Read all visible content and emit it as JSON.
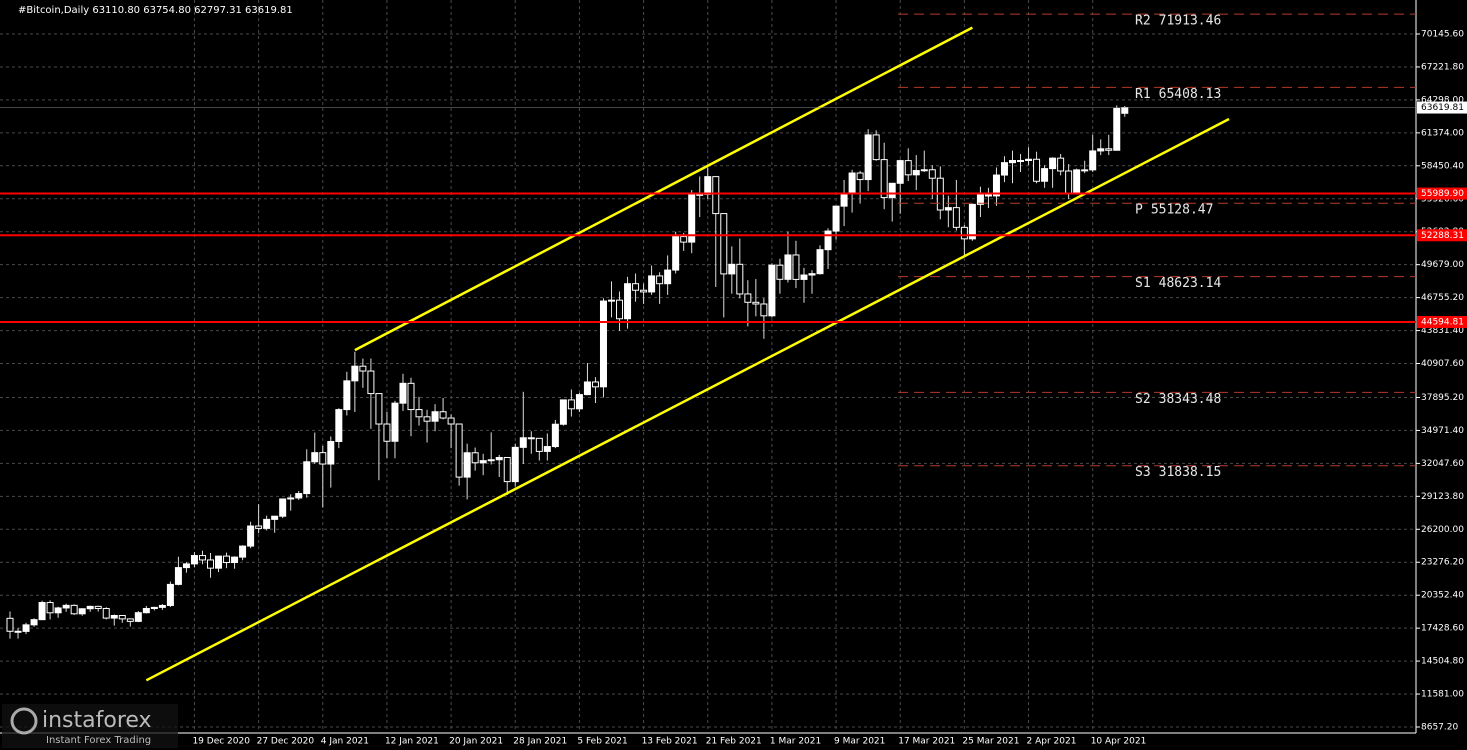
{
  "chart_data": {
    "type": "candlestick",
    "title": "#Bitcoin,Daily  63110.80 63754.80 62797.31 63619.81",
    "categories": [
      null,
      null,
      null,
      null,
      null,
      null,
      null,
      null,
      null,
      null,
      null,
      null,
      null,
      null,
      null,
      null,
      null,
      null,
      null,
      null,
      null,
      null,
      null,
      "19 Dec 2020",
      null,
      null,
      null,
      null,
      null,
      null,
      null,
      "27 Dec 2020",
      null,
      null,
      null,
      null,
      null,
      null,
      null,
      "4 Jan 2021",
      null,
      null,
      null,
      null,
      null,
      null,
      null,
      "12 Jan 2021",
      null,
      null,
      null,
      null,
      null,
      null,
      null,
      "20 Jan 2021",
      null,
      null,
      null,
      null,
      null,
      null,
      null,
      "28 Jan 2021",
      null,
      null,
      null,
      null,
      null,
      null,
      null,
      "5 Feb 2021",
      null,
      null,
      null,
      null,
      null,
      null,
      null,
      "13 Feb 2021",
      null,
      null,
      null,
      null,
      null,
      null,
      null,
      "21 Feb 2021",
      null,
      null,
      null,
      null,
      null,
      null,
      null,
      "1 Mar 2021",
      null,
      null,
      null,
      null,
      null,
      null,
      null,
      "9 Mar 2021",
      null,
      null,
      null,
      null,
      null,
      null,
      null,
      "17 Mar 2021",
      null,
      null,
      null,
      null,
      null,
      null,
      null,
      "25 Mar 2021",
      null,
      null,
      null,
      null,
      null,
      null,
      null,
      "2 Apr 2021",
      null,
      null,
      null,
      null,
      null,
      null,
      null,
      "10 Apr 2021",
      null,
      null,
      null,
      null
    ],
    "ohlc": [
      [
        18300,
        18900,
        16500,
        17150
      ],
      [
        17150,
        17450,
        16500,
        17140
      ],
      [
        17140,
        17900,
        16900,
        17720
      ],
      [
        17720,
        18300,
        17550,
        18180
      ],
      [
        18180,
        19860,
        18150,
        19700
      ],
      [
        19700,
        19900,
        18200,
        18790
      ],
      [
        18790,
        19330,
        18350,
        19220
      ],
      [
        19220,
        19600,
        18880,
        19450
      ],
      [
        19450,
        19540,
        18600,
        18700
      ],
      [
        18700,
        19180,
        18530,
        19150
      ],
      [
        19150,
        19420,
        18880,
        19360
      ],
      [
        19360,
        19420,
        18900,
        19170
      ],
      [
        19170,
        19280,
        18200,
        18320
      ],
      [
        18320,
        18640,
        17650,
        18550
      ],
      [
        18550,
        18560,
        17900,
        18250
      ],
      [
        18250,
        18290,
        17570,
        18030
      ],
      [
        18030,
        18950,
        17960,
        18800
      ],
      [
        18800,
        19400,
        18730,
        19170
      ],
      [
        19170,
        19330,
        19000,
        19270
      ],
      [
        19270,
        19570,
        19050,
        19440
      ],
      [
        19440,
        21560,
        19300,
        21310
      ],
      [
        21310,
        23770,
        21230,
        22800
      ],
      [
        22800,
        23280,
        22350,
        23130
      ],
      [
        23130,
        24170,
        22820,
        23870
      ],
      [
        23870,
        24300,
        23100,
        23480
      ],
      [
        23480,
        24100,
        21900,
        22750
      ],
      [
        22750,
        23840,
        22400,
        23820
      ],
      [
        23820,
        24130,
        22750,
        23250
      ],
      [
        23250,
        23800,
        22700,
        23730
      ],
      [
        23730,
        24780,
        23450,
        24710
      ],
      [
        24710,
        26870,
        24520,
        26490
      ],
      [
        26490,
        28420,
        25850,
        26280
      ],
      [
        26280,
        27410,
        26100,
        27080
      ],
      [
        27080,
        27370,
        25900,
        27360
      ],
      [
        27360,
        28940,
        27200,
        28890
      ],
      [
        28890,
        29300,
        27850,
        28980
      ],
      [
        28980,
        29600,
        28800,
        29370
      ],
      [
        29370,
        33300,
        29000,
        32190
      ],
      [
        32190,
        34780,
        32000,
        33000
      ],
      [
        33000,
        33600,
        28130,
        31990
      ],
      [
        31990,
        34440,
        29900,
        33990
      ],
      [
        33990,
        36940,
        33400,
        36820
      ],
      [
        36820,
        40180,
        36300,
        39370
      ],
      [
        39370,
        41950,
        36600,
        40670
      ],
      [
        40670,
        41350,
        38750,
        40240
      ],
      [
        40240,
        41350,
        35110,
        38240
      ],
      [
        38240,
        38250,
        30550,
        35540
      ],
      [
        35540,
        36630,
        32530,
        34010
      ],
      [
        34010,
        37600,
        32500,
        37390
      ],
      [
        37390,
        40000,
        36700,
        39150
      ],
      [
        39150,
        39650,
        34450,
        36820
      ],
      [
        36820,
        37950,
        35400,
        36180
      ],
      [
        36180,
        36800,
        33900,
        35790
      ],
      [
        35790,
        37300,
        34900,
        36630
      ],
      [
        36630,
        37850,
        35950,
        36070
      ],
      [
        36070,
        36400,
        33400,
        35540
      ],
      [
        35540,
        35550,
        30070,
        30830
      ],
      [
        30830,
        33800,
        28850,
        32990
      ],
      [
        32990,
        33450,
        31400,
        32100
      ],
      [
        32100,
        32900,
        31000,
        32290
      ],
      [
        32290,
        34800,
        31950,
        32370
      ],
      [
        32370,
        32800,
        30840,
        32570
      ],
      [
        32570,
        32570,
        29240,
        30430
      ],
      [
        30430,
        33800,
        30000,
        33470
      ],
      [
        33470,
        38400,
        32000,
        34320
      ],
      [
        34320,
        34900,
        32900,
        34270
      ],
      [
        34270,
        34300,
        32300,
        33110
      ],
      [
        33110,
        34700,
        32300,
        33540
      ],
      [
        33540,
        35900,
        33400,
        35520
      ],
      [
        35520,
        37700,
        35400,
        37680
      ],
      [
        37680,
        38600,
        36200,
        36890
      ],
      [
        36890,
        38300,
        36600,
        38150
      ],
      [
        38150,
        40950,
        38100,
        39270
      ],
      [
        39270,
        39700,
        37400,
        38840
      ],
      [
        38840,
        46700,
        37900,
        46450
      ],
      [
        46450,
        48200,
        45000,
        46530
      ],
      [
        46530,
        47300,
        43800,
        44880
      ],
      [
        44880,
        48600,
        44000,
        47990
      ],
      [
        47990,
        48900,
        46400,
        47410
      ],
      [
        47410,
        48000,
        46200,
        47260
      ],
      [
        47260,
        49600,
        47000,
        48680
      ],
      [
        48680,
        49000,
        46200,
        47990
      ],
      [
        47990,
        50500,
        47000,
        49200
      ],
      [
        49200,
        52600,
        48900,
        52170
      ],
      [
        52170,
        52500,
        50900,
        51680
      ],
      [
        51680,
        56300,
        50700,
        55890
      ],
      [
        55890,
        57500,
        53900,
        55920
      ],
      [
        55920,
        58300,
        55500,
        57490
      ],
      [
        57490,
        57500,
        47700,
        54210
      ],
      [
        54210,
        54200,
        45000,
        48860
      ],
      [
        48860,
        51300,
        47100,
        49710
      ],
      [
        49710,
        52000,
        46700,
        47080
      ],
      [
        47080,
        48300,
        44200,
        46340
      ],
      [
        46340,
        48400,
        45100,
        46190
      ],
      [
        46190,
        46700,
        43100,
        45140
      ],
      [
        45140,
        49800,
        45000,
        49630
      ],
      [
        49630,
        50200,
        47100,
        48380
      ],
      [
        48380,
        52600,
        48100,
        50540
      ],
      [
        50540,
        51800,
        47600,
        48370
      ],
      [
        48370,
        49400,
        46300,
        48760
      ],
      [
        48760,
        49200,
        47100,
        48880
      ],
      [
        48880,
        51400,
        48800,
        51010
      ],
      [
        51010,
        52900,
        49300,
        52660
      ],
      [
        52660,
        54900,
        51900,
        54870
      ],
      [
        54870,
        57200,
        53100,
        55990
      ],
      [
        55990,
        58100,
        54300,
        57810
      ],
      [
        57810,
        58000,
        55100,
        57230
      ],
      [
        57230,
        61700,
        56200,
        61190
      ],
      [
        61190,
        61600,
        58900,
        59000
      ],
      [
        59000,
        60500,
        54600,
        55630
      ],
      [
        55630,
        56900,
        53500,
        56900
      ],
      [
        56900,
        59000,
        54200,
        58910
      ],
      [
        58910,
        60000,
        57100,
        57650
      ],
      [
        57650,
        59400,
        56300,
        58030
      ],
      [
        58030,
        59800,
        57900,
        58100
      ],
      [
        58100,
        58500,
        55500,
        57350
      ],
      [
        57350,
        58400,
        53700,
        54530
      ],
      [
        54530,
        55800,
        53000,
        54740
      ],
      [
        54740,
        57200,
        52700,
        52990
      ],
      [
        52990,
        53200,
        50400,
        51970
      ],
      [
        51970,
        55100,
        51800,
        55030
      ],
      [
        55030,
        56600,
        53900,
        55860
      ],
      [
        55860,
        56500,
        54700,
        55780
      ],
      [
        55780,
        58300,
        54900,
        57630
      ],
      [
        57630,
        59300,
        57000,
        58730
      ],
      [
        58730,
        59800,
        56900,
        58920
      ],
      [
        58920,
        59500,
        57900,
        58920
      ],
      [
        58920,
        60100,
        58500,
        59030
      ],
      [
        59030,
        59700,
        56900,
        57080
      ],
      [
        57080,
        58500,
        56500,
        58200
      ],
      [
        58200,
        59200,
        56500,
        59130
      ],
      [
        59130,
        59500,
        57600,
        57990
      ],
      [
        57990,
        58600,
        55500,
        56000
      ],
      [
        56000,
        58200,
        55900,
        58090
      ],
      [
        58090,
        58900,
        57800,
        58090
      ],
      [
        58090,
        61200,
        57900,
        59770
      ],
      [
        59770,
        60800,
        59400,
        59960
      ],
      [
        59960,
        61200,
        59400,
        59830
      ],
      [
        59830,
        63800,
        59800,
        63540
      ],
      [
        63110.8,
        63754.8,
        62797.31,
        63619.81
      ]
    ],
    "ylim": [
      8391,
      73162
    ],
    "yticks": [
      {
        "value": 8657.2,
        "label": "8657.20"
      },
      {
        "value": 11581,
        "label": "11581.00"
      },
      {
        "value": 14504.8,
        "label": "14504.80"
      },
      {
        "value": 17428.6,
        "label": "17428.60"
      },
      {
        "value": 20352.4,
        "label": "20352.40"
      },
      {
        "value": 23276.2,
        "label": "23276.20"
      },
      {
        "value": 26200,
        "label": "26200.00"
      },
      {
        "value": 29123.8,
        "label": "29123.80"
      },
      {
        "value": 32047.6,
        "label": "32047.60"
      },
      {
        "value": 34971.4,
        "label": "34971.40"
      },
      {
        "value": 37895.2,
        "label": "37895.20"
      },
      {
        "value": 40907.6,
        "label": "40907.60"
      },
      {
        "value": 43831.4,
        "label": "43831.40"
      },
      {
        "value": 46755.2,
        "label": "46755.20"
      },
      {
        "value": 49679,
        "label": "49679.00"
      },
      {
        "value": 52602.8,
        "label": "52602.80"
      },
      {
        "value": 55526.6,
        "label": "55526.60"
      },
      {
        "value": 58450.4,
        "label": "58450.40"
      },
      {
        "value": 61374,
        "label": "61374.00"
      },
      {
        "value": 64298,
        "label": "64298.00"
      },
      {
        "value": 67221.8,
        "label": "67221.80"
      },
      {
        "value": 70145.6,
        "label": "70145.60"
      }
    ],
    "grid": true,
    "horizontal_levels": [
      {
        "value": 55989.9,
        "label": "55989.90",
        "color": "#ff0000"
      },
      {
        "value": 52288.31,
        "label": "52288.31",
        "color": "#ff0000"
      },
      {
        "value": 44594.81,
        "label": "44594.81",
        "color": "#ff0000"
      }
    ],
    "current_price": 63619.81,
    "pivots": [
      {
        "name": "R2",
        "value": 71913.46
      },
      {
        "name": "R1",
        "value": 65408.13
      },
      {
        "name": "P",
        "value": 55128.47
      },
      {
        "name": "S1",
        "value": 48623.14
      },
      {
        "name": "S2",
        "value": 38343.48
      },
      {
        "name": "S3",
        "value": 31838.15
      }
    ],
    "pivot_color": "#b23a2a",
    "trendlines": [
      {
        "x": [
          43,
          120
        ],
        "y": [
          42100,
          70713
        ]
      },
      {
        "x": [
          17,
          152
        ],
        "y": [
          12800,
          62600
        ]
      }
    ],
    "trendline_color": "#ffff00",
    "watermark": {
      "brand": "instaforex",
      "tagline": "Instant Forex Trading"
    }
  }
}
